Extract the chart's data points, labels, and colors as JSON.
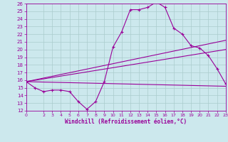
{
  "xlabel": "Windchill (Refroidissement éolien,°C)",
  "bg_color": "#cce8ed",
  "line_color": "#990099",
  "grid_color": "#aacccc",
  "xlim": [
    0,
    23
  ],
  "ylim": [
    12,
    26
  ],
  "xticks": [
    0,
    2,
    3,
    4,
    5,
    6,
    7,
    8,
    9,
    10,
    11,
    12,
    13,
    14,
    15,
    16,
    17,
    18,
    19,
    20,
    21,
    22,
    23
  ],
  "yticks": [
    12,
    13,
    14,
    15,
    16,
    17,
    18,
    19,
    20,
    21,
    22,
    23,
    24,
    25,
    26
  ],
  "series1_x": [
    0,
    1,
    2,
    3,
    4,
    5,
    6,
    7,
    8,
    9,
    10,
    11,
    12,
    13,
    14,
    15,
    16,
    17,
    18,
    19,
    20,
    21,
    22,
    23
  ],
  "series1_y": [
    15.8,
    15.0,
    14.5,
    14.7,
    14.7,
    14.5,
    13.2,
    12.2,
    13.2,
    15.8,
    20.3,
    22.3,
    25.2,
    25.2,
    25.5,
    26.2,
    25.5,
    22.8,
    22.0,
    20.5,
    20.2,
    19.2,
    17.5,
    15.5
  ],
  "series2_x": [
    0,
    23
  ],
  "series2_y": [
    15.8,
    21.2
  ],
  "series3_x": [
    0,
    23
  ],
  "series3_y": [
    15.8,
    20.0
  ],
  "series4_x": [
    0,
    23
  ],
  "series4_y": [
    15.8,
    15.2
  ]
}
